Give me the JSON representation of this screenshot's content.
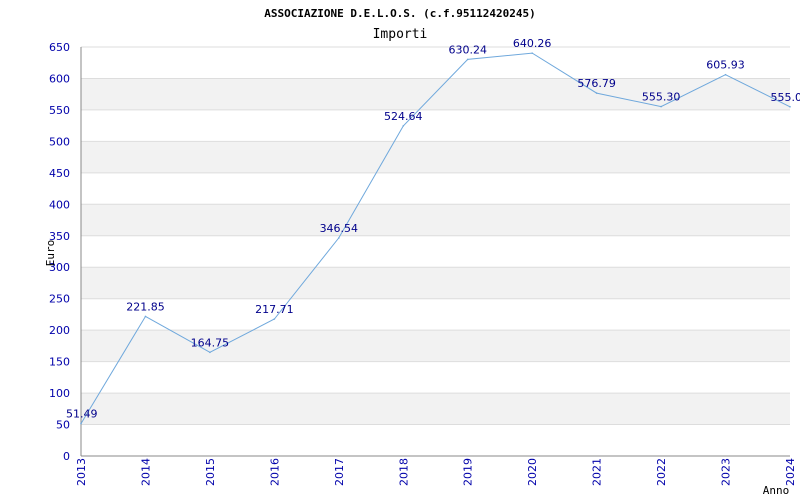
{
  "chart_data": {
    "type": "line",
    "title": "ASSOCIAZIONE D.E.L.O.S. (c.f.95112420245)",
    "subtitle": "Importi",
    "xlabel": "Anno",
    "ylabel": "Euro",
    "x": [
      "2013",
      "2014",
      "2015",
      "2016",
      "2017",
      "2018",
      "2019",
      "2020",
      "2021",
      "2022",
      "2023",
      "2024"
    ],
    "series": [
      {
        "values": [
          51.49,
          221.85,
          164.75,
          217.71,
          346.54,
          524.64,
          630.24,
          640.26,
          576.79,
          555.3,
          605.93,
          555.0
        ]
      }
    ],
    "data_labels": [
      "51.49",
      "221.85",
      "164.75",
      "217.71",
      "346.54",
      "524.64",
      "630.24",
      "640.26",
      "576.79",
      "555.30",
      "605.93",
      "555.0"
    ],
    "y_ticks": [
      "0",
      "50",
      "100",
      "150",
      "200",
      "250",
      "300",
      "350",
      "400",
      "450",
      "500",
      "550",
      "600",
      "650"
    ],
    "ylim": [
      0,
      650
    ],
    "grid": "alternating horizontal bands",
    "colors": {
      "line": "#6fa8dc",
      "band": "#f2f2f2",
      "grid": "#dddddd",
      "tick_text": "#0000aa",
      "label_text": "#00008b"
    }
  }
}
